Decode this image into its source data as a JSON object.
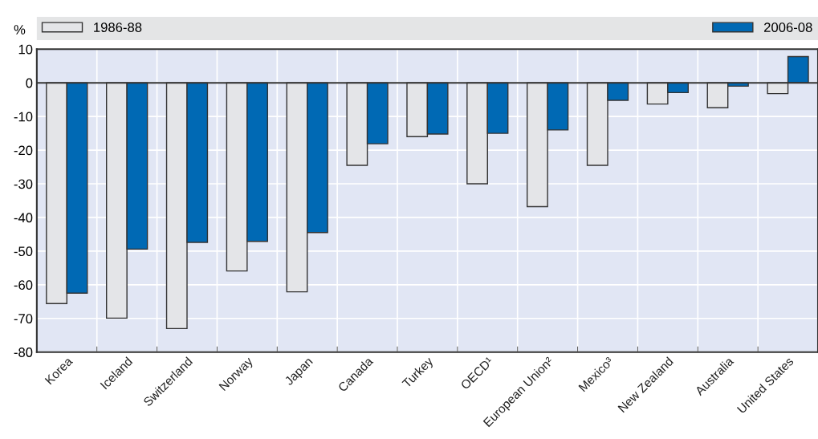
{
  "chart_data": {
    "type": "bar",
    "ylabel": "%",
    "categories": [
      "Korea",
      "Iceland",
      "Switzerland",
      "Norway",
      "Japan",
      "Canada",
      "Turkey",
      "OECD¹",
      "European Union²",
      "Mexico³",
      "New Zealand",
      "Australia",
      "United States"
    ],
    "series": [
      {
        "name": "1986-88",
        "color": "#e4e5e8",
        "values": [
          -65.6,
          -69.9,
          -73.0,
          -55.9,
          -62.1,
          -24.5,
          -16.0,
          -30.0,
          -36.8,
          -24.5,
          -6.3,
          -7.4,
          -3.2
        ]
      },
      {
        "name": "2006-08",
        "color": "#0069b4",
        "values": [
          -62.5,
          -49.4,
          -47.4,
          -47.1,
          -44.5,
          -18.1,
          -15.2,
          -15.0,
          -14.0,
          -5.2,
          -2.9,
          -1.0,
          7.8
        ]
      }
    ],
    "ylim": [
      -80,
      10
    ],
    "yticks": [
      -80,
      -70,
      -60,
      -50,
      -40,
      -30,
      -20,
      -10,
      0,
      10
    ],
    "grid": true,
    "legend": "top"
  }
}
